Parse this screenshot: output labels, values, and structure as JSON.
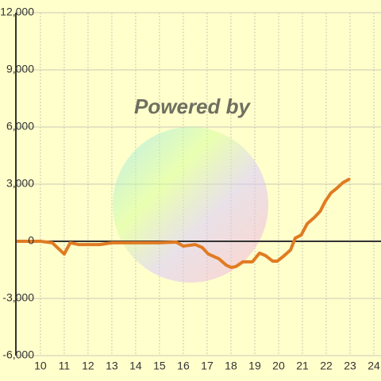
{
  "chart_data": {
    "type": "line",
    "annotation": "Powered by",
    "x": [
      9,
      10,
      10.5,
      11,
      11.25,
      11.6,
      12.5,
      13,
      15,
      15.7,
      16,
      16.5,
      16.8,
      17.05,
      17.5,
      17.8,
      18,
      18.2,
      18.5,
      18.9,
      19.2,
      19.45,
      19.75,
      19.95,
      20.2,
      20.5,
      20.7,
      20.95,
      21.2,
      21.5,
      21.75,
      21.95,
      22.2,
      22.45,
      22.7,
      22.95
    ],
    "series": [
      {
        "color": "#e07b22",
        "values": [
          0,
          0,
          -80,
          -670,
          -80,
          -170,
          -170,
          -80,
          -80,
          -40,
          -250,
          -170,
          -330,
          -670,
          -920,
          -1250,
          -1370,
          -1330,
          -1080,
          -1080,
          -620,
          -750,
          -1040,
          -1040,
          -790,
          -460,
          170,
          330,
          920,
          1250,
          1580,
          2080,
          2540,
          2790,
          3080,
          3250
        ]
      }
    ],
    "xlim": [
      8.97,
      24.3
    ],
    "xticks": [
      10,
      11,
      12,
      13,
      14,
      15,
      16,
      17,
      18,
      19,
      20,
      21,
      22,
      23,
      24
    ],
    "ylim": [
      -6000,
      12000
    ],
    "yticks": [
      {
        "value": -6000,
        "label": "-6,000"
      },
      {
        "value": -3000,
        "label": "-3,000"
      },
      0,
      {
        "value": 3000,
        "label": "3,000"
      },
      {
        "value": 6000,
        "label": "6,000"
      },
      {
        "value": 9000,
        "label": "9,000"
      },
      {
        "value": 12000,
        "label": "12,000"
      }
    ],
    "grid": true
  }
}
